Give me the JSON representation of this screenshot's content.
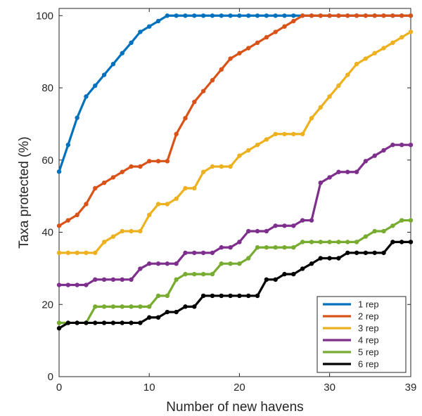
{
  "chart_data": {
    "type": "line",
    "title": "",
    "xlabel": "Number of new havens",
    "ylabel": "Taxa protected (%)",
    "xlim": [
      0,
      39
    ],
    "ylim": [
      0,
      102
    ],
    "xticks": [
      0,
      10,
      20,
      30,
      39
    ],
    "yticks": [
      0,
      20,
      40,
      60,
      80,
      100
    ],
    "grid": false,
    "legend_position": "bottom-right",
    "x": [
      0,
      1,
      2,
      3,
      4,
      5,
      6,
      7,
      8,
      9,
      10,
      11,
      12,
      13,
      14,
      15,
      16,
      17,
      18,
      19,
      20,
      21,
      22,
      23,
      24,
      25,
      26,
      27,
      28,
      29,
      30,
      31,
      32,
      33,
      34,
      35,
      36,
      37,
      38,
      39
    ],
    "series": [
      {
        "name": "1 rep",
        "color": "#0072BD",
        "values": [
          56.8,
          64.2,
          71.7,
          77.6,
          80.6,
          83.6,
          86.6,
          89.6,
          92.5,
          95.5,
          97.0,
          98.5,
          100,
          100,
          100,
          100,
          100,
          100,
          100,
          100,
          100,
          100,
          100,
          100,
          100,
          100,
          100,
          100,
          100,
          100,
          100,
          100,
          100,
          100,
          100,
          100,
          100,
          100,
          100,
          100
        ]
      },
      {
        "name": "2 rep",
        "color": "#D95319",
        "values": [
          41.8,
          43.3,
          44.8,
          47.8,
          52.2,
          53.7,
          55.2,
          56.7,
          58.2,
          58.2,
          59.7,
          59.7,
          59.7,
          67.2,
          71.6,
          76.1,
          79.1,
          82.1,
          85.1,
          88.1,
          89.6,
          91.0,
          92.5,
          94.0,
          95.5,
          97.0,
          98.5,
          100,
          100,
          100,
          100,
          100,
          100,
          100,
          100,
          100,
          100,
          100,
          100,
          100
        ]
      },
      {
        "name": "3 rep",
        "color": "#EDB120",
        "values": [
          34.3,
          34.3,
          34.3,
          34.3,
          34.3,
          37.3,
          38.8,
          40.3,
          40.3,
          40.3,
          44.8,
          47.8,
          47.8,
          49.3,
          52.2,
          52.2,
          56.7,
          58.2,
          58.2,
          58.2,
          61.2,
          62.7,
          64.2,
          65.7,
          67.2,
          67.2,
          67.2,
          67.2,
          71.6,
          74.6,
          77.6,
          80.6,
          83.6,
          86.6,
          88.1,
          89.6,
          91.0,
          92.5,
          94.0,
          95.5
        ]
      },
      {
        "name": "4 rep",
        "color": "#7E2F8E",
        "values": [
          25.4,
          25.4,
          25.4,
          25.4,
          26.9,
          26.9,
          26.9,
          26.9,
          26.9,
          29.9,
          31.3,
          31.3,
          31.3,
          31.3,
          34.3,
          34.3,
          34.3,
          34.3,
          35.8,
          35.8,
          37.3,
          40.3,
          40.3,
          40.3,
          41.8,
          41.8,
          41.8,
          43.3,
          43.3,
          53.7,
          55.2,
          56.7,
          56.7,
          56.7,
          59.7,
          61.2,
          62.7,
          64.2,
          64.2,
          64.2
        ]
      },
      {
        "name": "5 rep",
        "color": "#77AC30",
        "values": [
          14.9,
          14.9,
          14.9,
          14.9,
          19.4,
          19.4,
          19.4,
          19.4,
          19.4,
          19.4,
          19.4,
          22.4,
          22.4,
          26.9,
          28.4,
          28.4,
          28.4,
          28.4,
          31.3,
          31.3,
          31.3,
          32.8,
          35.8,
          35.8,
          35.8,
          35.8,
          35.8,
          37.3,
          37.3,
          37.3,
          37.3,
          37.3,
          37.3,
          37.3,
          38.8,
          40.3,
          40.3,
          41.8,
          43.3,
          43.3
        ]
      },
      {
        "name": "6 rep",
        "color": "#000000",
        "values": [
          13.4,
          14.9,
          14.9,
          14.9,
          14.9,
          14.9,
          14.9,
          14.9,
          14.9,
          14.9,
          16.4,
          16.4,
          17.9,
          17.9,
          19.4,
          19.4,
          22.4,
          22.4,
          22.4,
          22.4,
          22.4,
          22.4,
          22.4,
          26.9,
          26.9,
          28.4,
          28.4,
          29.9,
          31.3,
          32.8,
          32.8,
          32.8,
          34.3,
          34.3,
          34.3,
          34.3,
          34.3,
          37.3,
          37.3,
          37.3
        ]
      }
    ]
  }
}
